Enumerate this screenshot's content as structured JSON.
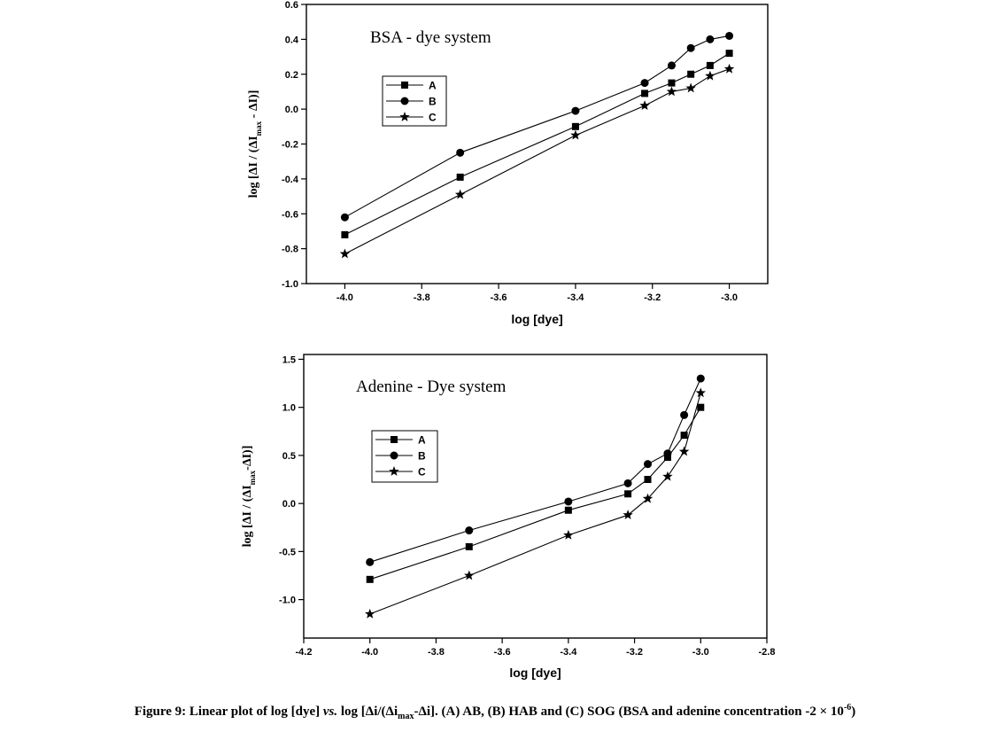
{
  "chart_data": [
    {
      "type": "line",
      "title": "BSA - dye system",
      "xlabel": "log [dye]",
      "ylabel": {
        "pre": "log [ΔI / (ΔI",
        "sub": "max",
        "post": " - ΔI)]"
      },
      "xlim": [
        -4.1,
        -2.9
      ],
      "ylim": [
        -1.0,
        0.6
      ],
      "xticks": [
        -4.0,
        -3.8,
        -3.6,
        -3.4,
        -3.2,
        -3.0
      ],
      "xtick_labels": [
        "-4.0",
        "-3.8",
        "-3.6",
        "-3.4",
        "-3.2",
        "-3.0"
      ],
      "yticks": [
        -1.0,
        -0.8,
        -0.6,
        -0.4,
        -0.2,
        0.0,
        0.2,
        0.4,
        0.6
      ],
      "ytick_labels": [
        "-1.0",
        "-0.8",
        "-0.6",
        "-0.4",
        "-0.2",
        "0.0",
        "0.2",
        "0.4",
        "0.6"
      ],
      "legend": "upper-left",
      "grid": false,
      "series": [
        {
          "name": "A",
          "marker": "square",
          "points": [
            [
              -4.0,
              -0.72
            ],
            [
              -3.7,
              -0.39
            ],
            [
              -3.4,
              -0.1
            ],
            [
              -3.22,
              0.09
            ],
            [
              -3.15,
              0.15
            ],
            [
              -3.1,
              0.2
            ],
            [
              -3.05,
              0.25
            ],
            [
              -3.0,
              0.32
            ]
          ]
        },
        {
          "name": "B",
          "marker": "circle",
          "points": [
            [
              -4.0,
              -0.62
            ],
            [
              -3.7,
              -0.25
            ],
            [
              -3.4,
              -0.01
            ],
            [
              -3.22,
              0.15
            ],
            [
              -3.15,
              0.25
            ],
            [
              -3.1,
              0.35
            ],
            [
              -3.05,
              0.4
            ],
            [
              -3.0,
              0.42
            ]
          ]
        },
        {
          "name": "C",
          "marker": "star",
          "points": [
            [
              -4.0,
              -0.83
            ],
            [
              -3.7,
              -0.49
            ],
            [
              -3.4,
              -0.15
            ],
            [
              -3.22,
              0.02
            ],
            [
              -3.15,
              0.1
            ],
            [
              -3.1,
              0.12
            ],
            [
              -3.05,
              0.19
            ],
            [
              -3.0,
              0.23
            ]
          ]
        }
      ]
    },
    {
      "type": "line",
      "title": "Adenine - Dye system",
      "xlabel": "log [dye]",
      "ylabel": {
        "pre": "log [ΔI / (ΔI",
        "sub": "max",
        "post": "-ΔI)]"
      },
      "xlim": [
        -4.2,
        -2.8
      ],
      "ylim": [
        -1.4,
        1.55
      ],
      "xticks": [
        -4.2,
        -4.0,
        -3.8,
        -3.6,
        -3.4,
        -3.2,
        -3.0,
        -2.8
      ],
      "xtick_labels": [
        "-4.2",
        "-4.0",
        "-3.8",
        "-3.6",
        "-3.4",
        "-3.2",
        "-3.0",
        "-2.8"
      ],
      "yticks": [
        -1.0,
        -0.5,
        0.0,
        0.5,
        1.0,
        1.5
      ],
      "ytick_labels": [
        "-1.0",
        "-0.5",
        "0.0",
        "0.5",
        "1.0",
        "1.5"
      ],
      "legend": "upper-left",
      "grid": false,
      "series": [
        {
          "name": "A",
          "marker": "square",
          "points": [
            [
              -4.0,
              -0.79
            ],
            [
              -3.7,
              -0.45
            ],
            [
              -3.4,
              -0.07
            ],
            [
              -3.22,
              0.1
            ],
            [
              -3.16,
              0.25
            ],
            [
              -3.1,
              0.48
            ],
            [
              -3.05,
              0.71
            ],
            [
              -3.0,
              1.0
            ]
          ]
        },
        {
          "name": "B",
          "marker": "circle",
          "points": [
            [
              -4.0,
              -0.61
            ],
            [
              -3.7,
              -0.28
            ],
            [
              -3.4,
              0.02
            ],
            [
              -3.22,
              0.21
            ],
            [
              -3.16,
              0.41
            ],
            [
              -3.1,
              0.52
            ],
            [
              -3.05,
              0.92
            ],
            [
              -3.0,
              1.3
            ]
          ]
        },
        {
          "name": "C",
          "marker": "star",
          "points": [
            [
              -4.0,
              -1.15
            ],
            [
              -3.7,
              -0.75
            ],
            [
              -3.4,
              -0.33
            ],
            [
              -3.22,
              -0.12
            ],
            [
              -3.16,
              0.05
            ],
            [
              -3.1,
              0.28
            ],
            [
              -3.05,
              0.54
            ],
            [
              -3.0,
              1.15
            ]
          ]
        }
      ]
    }
  ],
  "caption": {
    "part1": "Figure 9: Linear plot of log [dye] ",
    "vs": "vs.",
    "part2": " log [Δi/(Δi",
    "sub": "max",
    "part3": "-Δi]. (A) AB, (B) HAB and (C) SOG (BSA and adenine concentration -2 × 10",
    "sup": "-6",
    "part4": ")"
  }
}
